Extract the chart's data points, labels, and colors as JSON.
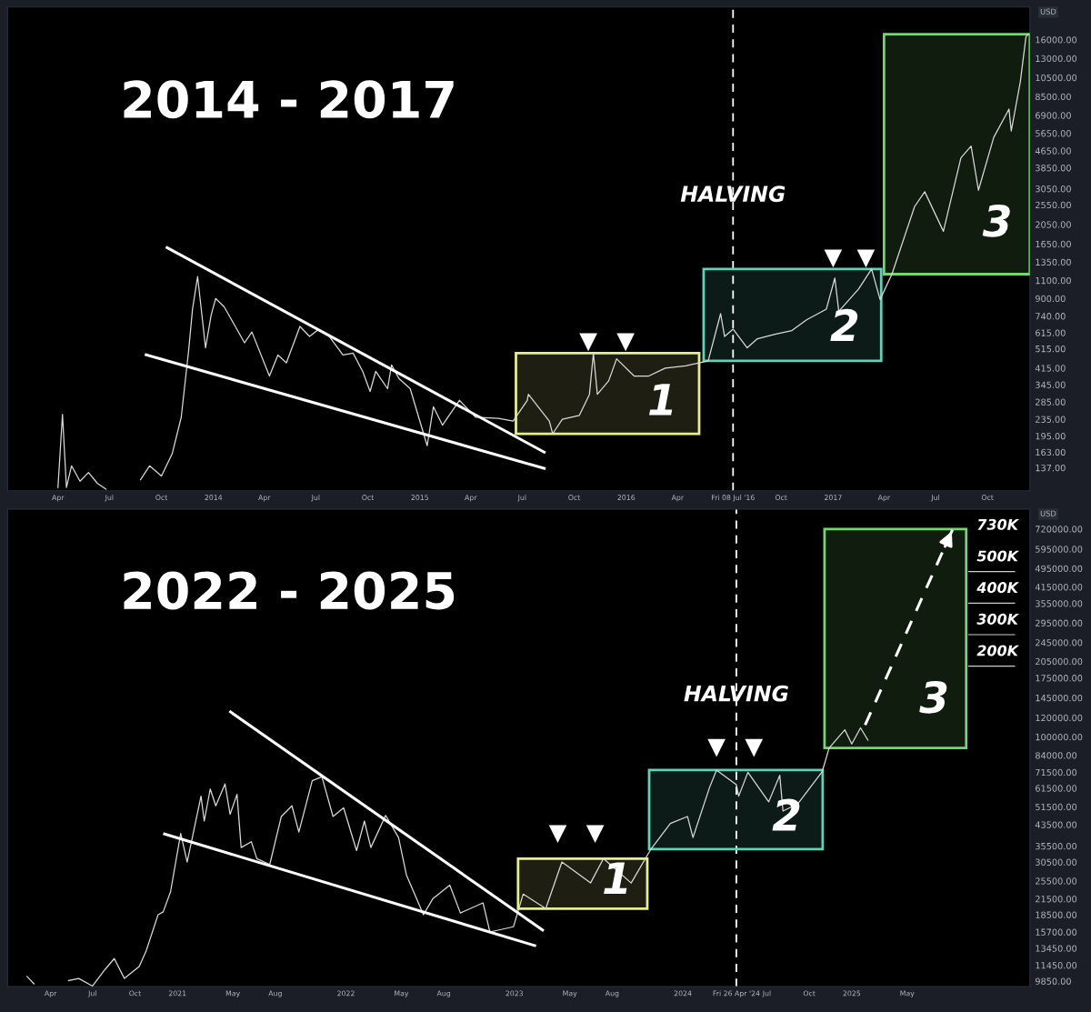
{
  "chart_data": [
    {
      "type": "line",
      "title": "2014 - 2017",
      "ylabel": "USD",
      "log": "y",
      "xlim": [
        "2013-01-02",
        "2017-12-15"
      ],
      "ylim": [
        106,
        23000
      ],
      "xticks": [
        {
          "value": "2013-04-01",
          "label": "Apr"
        },
        {
          "value": "2013-07-01",
          "label": "Jul"
        },
        {
          "value": "2013-10-01",
          "label": "Oct"
        },
        {
          "value": "2014-01-01",
          "label": "2014"
        },
        {
          "value": "2014-04-01",
          "label": "Apr"
        },
        {
          "value": "2014-07-01",
          "label": "Jul"
        },
        {
          "value": "2014-10-01",
          "label": "Oct"
        },
        {
          "value": "2015-01-01",
          "label": "2015"
        },
        {
          "value": "2015-04-01",
          "label": "Apr"
        },
        {
          "value": "2015-07-01",
          "label": "Jul"
        },
        {
          "value": "2015-10-01",
          "label": "Oct"
        },
        {
          "value": "2016-01-01",
          "label": "2016"
        },
        {
          "value": "2016-04-01",
          "label": "Apr"
        },
        {
          "value": "2016-07-08",
          "label": "Fri 08 Jul '16"
        },
        {
          "value": "2016-10-01",
          "label": "Oct"
        },
        {
          "value": "2017-01-01",
          "label": "2017"
        },
        {
          "value": "2017-04-01",
          "label": "Apr"
        },
        {
          "value": "2017-07-01",
          "label": "Jul"
        },
        {
          "value": "2017-10-01",
          "label": "Oct"
        }
      ],
      "yticks": [
        {
          "value": 16000,
          "label": "16000.00"
        },
        {
          "value": 13000,
          "label": "13000.00"
        },
        {
          "value": 10500,
          "label": "10500.00"
        },
        {
          "value": 8500,
          "label": "8500.00"
        },
        {
          "value": 6900,
          "label": "6900.00"
        },
        {
          "value": 5650,
          "label": "5650.00"
        },
        {
          "value": 4650,
          "label": "4650.00"
        },
        {
          "value": 3850,
          "label": "3850.00"
        },
        {
          "value": 3050,
          "label": "3050.00"
        },
        {
          "value": 2550,
          "label": "2550.00"
        },
        {
          "value": 2050,
          "label": "2050.00"
        },
        {
          "value": 1650,
          "label": "1650.00"
        },
        {
          "value": 1350,
          "label": "1350.00"
        },
        {
          "value": 1100,
          "label": "1100.00"
        },
        {
          "value": 900,
          "label": "900.00"
        },
        {
          "value": 740,
          "label": "740.00"
        },
        {
          "value": 615,
          "label": "615.00"
        },
        {
          "value": 515,
          "label": "515.00"
        },
        {
          "value": 415,
          "label": "415.00"
        },
        {
          "value": 345,
          "label": "345.00"
        },
        {
          "value": 285,
          "label": "285.00"
        },
        {
          "value": 235,
          "label": "235.00"
        },
        {
          "value": 195,
          "label": "195.00"
        },
        {
          "value": 163,
          "label": "163.00"
        },
        {
          "value": 137,
          "label": "137.00"
        }
      ],
      "series": [
        {
          "color": "#d9d9d9",
          "x": [
            "2013-04-01",
            "2013-04-09",
            "2013-04-16",
            "2013-04-25",
            "2013-05-10",
            "2013-05-25",
            "2013-06-10",
            "2013-06-25",
            "2013-07-10",
            "2013-08-25",
            "2013-09-10",
            "2013-10-01",
            "2013-10-20",
            "2013-11-05",
            "2013-11-18",
            "2013-11-25",
            "2013-12-04",
            "2013-12-18",
            "2013-12-28",
            "2014-01-05",
            "2014-01-20",
            "2014-02-10",
            "2014-02-25",
            "2014-03-10",
            "2014-04-10",
            "2014-04-25",
            "2014-05-10",
            "2014-06-03",
            "2014-06-20",
            "2014-07-05",
            "2014-07-25",
            "2014-08-18",
            "2014-09-05",
            "2014-09-22",
            "2014-10-05",
            "2014-10-15",
            "2014-11-05",
            "2014-11-12",
            "2014-11-25",
            "2014-12-15",
            "2015-01-14",
            "2015-01-25",
            "2015-02-10",
            "2015-03-12",
            "2015-04-10",
            "2015-05-20",
            "2015-06-15",
            "2015-07-10",
            "2015-07-12",
            "2015-08-18",
            "2015-08-24",
            "2015-09-10",
            "2015-10-10",
            "2015-10-28",
            "2015-11-04",
            "2015-11-11",
            "2015-12-01",
            "2015-12-15",
            "2016-01-15",
            "2016-02-10",
            "2016-03-10",
            "2016-04-15",
            "2016-05-25",
            "2016-06-16",
            "2016-06-23",
            "2016-07-08",
            "2016-08-02",
            "2016-08-20",
            "2016-09-20",
            "2016-10-20",
            "2016-11-15",
            "2016-12-20",
            "2017-01-04",
            "2017-01-11",
            "2017-02-15",
            "2017-03-10",
            "2017-03-25",
            "2017-04-15",
            "2017-05-25",
            "2017-06-12",
            "2017-07-15",
            "2017-08-15",
            "2017-09-02",
            "2017-09-15",
            "2017-10-12",
            "2017-11-08",
            "2017-11-12",
            "2017-11-28",
            "2017-12-08",
            "2017-12-12"
          ],
          "values": [
            110,
            248,
            110,
            140,
            118,
            130,
            115,
            108,
            null,
            120,
            140,
            125,
            160,
            240,
            500,
            800,
            1150,
            520,
            750,
            900,
            820,
            650,
            550,
            620,
            380,
            480,
            440,
            660,
            590,
            635,
            590,
            480,
            490,
            400,
            320,
            400,
            330,
            430,
            370,
            330,
            175,
            270,
            220,
            290,
            240,
            237,
            230,
            290,
            310,
            230,
            200,
            235,
            245,
            310,
            490,
            310,
            360,
            460,
            380,
            380,
            415,
            425,
            450,
            760,
            590,
            640,
            520,
            575,
            605,
            630,
            710,
            800,
            1130,
            780,
            1000,
            1250,
            890,
            1180,
            2500,
            2950,
            1900,
            4300,
            4900,
            3000,
            5400,
            7400,
            5800,
            10000,
            16500,
            17000
          ]
        },
        {
          "type": "line",
          "color": "#ffffff",
          "line_style": "solid",
          "x": [
            "2013-10-11",
            "2015-08-09"
          ],
          "values": [
            1585,
            163
          ]
        },
        {
          "type": "line",
          "color": "#ffffff",
          "line_style": "solid",
          "x": [
            "2013-09-04",
            "2015-08-09"
          ],
          "values": [
            481,
            136
          ]
        },
        {
          "type": "scatter",
          "color": "#ffffff",
          "marker": "triangle",
          "x": [
            "2015-10-26",
            "2015-12-31",
            "2017-01-01",
            "2017-02-28"
          ],
          "values": [
            553,
            553,
            1403,
            1403
          ]
        }
      ],
      "ref_lines": [
        {
          "axis": "x",
          "value": "2016-07-08",
          "label": "HALVING",
          "color": "#ffffff",
          "line_style": "dashed"
        }
      ],
      "bands": [
        {
          "axis": "x",
          "from": "2015-06-20",
          "to": "2016-05-09",
          "label": "1",
          "color": "#e6ef8a"
        },
        {
          "axis": "x",
          "from": "2016-05-17",
          "to": "2017-03-27",
          "label": "2",
          "color": "#5fd3b5"
        },
        {
          "axis": "x",
          "from": "2017-04-01",
          "to": "2017-12-15",
          "label": "3",
          "color": "#74d66e"
        }
      ]
    },
    {
      "type": "line",
      "title": "2022 - 2025",
      "ylabel": "USD",
      "log": "y",
      "xlim": [
        "2019-12-30",
        "2026-01-22"
      ],
      "ylim": [
        9340,
        870000
      ],
      "xticks": [
        {
          "value": "2020-04-01",
          "label": "Apr"
        },
        {
          "value": "2020-07-01",
          "label": "Jul"
        },
        {
          "value": "2020-10-01",
          "label": "Oct"
        },
        {
          "value": "2021-01-01",
          "label": "2021"
        },
        {
          "value": "2021-05-01",
          "label": "May"
        },
        {
          "value": "2021-08-01",
          "label": "Aug"
        },
        {
          "value": "2022-01-01",
          "label": "2022"
        },
        {
          "value": "2022-05-01",
          "label": "May"
        },
        {
          "value": "2022-08-01",
          "label": "Aug"
        },
        {
          "value": "2023-01-01",
          "label": "2023"
        },
        {
          "value": "2023-05-01",
          "label": "May"
        },
        {
          "value": "2023-08-01",
          "label": "Aug"
        },
        {
          "value": "2024-01-01",
          "label": "2024"
        },
        {
          "value": "2024-04-26",
          "label": "Fri 26 Apr '24"
        },
        {
          "value": "2024-07-01",
          "label": "Jul"
        },
        {
          "value": "2024-10-01",
          "label": "Oct"
        },
        {
          "value": "2025-01-01",
          "label": "2025"
        },
        {
          "value": "2025-05-01",
          "label": "May"
        }
      ],
      "yticks": [
        {
          "value": 720000,
          "label": "720000.00"
        },
        {
          "value": 595000,
          "label": "595000.00"
        },
        {
          "value": 495000,
          "label": "495000.00"
        },
        {
          "value": 415000,
          "label": "415000.00"
        },
        {
          "value": 355000,
          "label": "355000.00"
        },
        {
          "value": 295000,
          "label": "295000.00"
        },
        {
          "value": 245000,
          "label": "245000.00"
        },
        {
          "value": 205000,
          "label": "205000.00"
        },
        {
          "value": 175000,
          "label": "175000.00"
        },
        {
          "value": 145000,
          "label": "145000.00"
        },
        {
          "value": 120000,
          "label": "120000.00"
        },
        {
          "value": 100000,
          "label": "100000.00"
        },
        {
          "value": 84000,
          "label": "84000.00"
        },
        {
          "value": 71500,
          "label": "71500.00"
        },
        {
          "value": 61500,
          "label": "61500.00"
        },
        {
          "value": 51500,
          "label": "51500.00"
        },
        {
          "value": 43500,
          "label": "43500.00"
        },
        {
          "value": 35500,
          "label": "35500.00"
        },
        {
          "value": 30500,
          "label": "30500.00"
        },
        {
          "value": 25500,
          "label": "25500.00"
        },
        {
          "value": 21500,
          "label": "21500.00"
        },
        {
          "value": 18500,
          "label": "18500.00"
        },
        {
          "value": 15700,
          "label": "15700.00"
        },
        {
          "value": 13450,
          "label": "13450.00"
        },
        {
          "value": 11450,
          "label": "11450.00"
        },
        {
          "value": 9850,
          "label": "9850.00"
        }
      ],
      "series": [
        {
          "color": "#d9d9d9",
          "x": [
            "2020-02-10",
            "2020-02-25",
            "2020-03-15",
            "2020-05-10",
            "2020-06-01",
            "2020-07-01",
            "2020-07-28",
            "2020-08-17",
            "2020-09-08",
            "2020-10-10",
            "2020-10-25",
            "2020-11-20",
            "2020-12-01",
            "2020-12-17",
            "2021-01-08",
            "2021-01-22",
            "2021-02-21",
            "2021-02-28",
            "2021-03-13",
            "2021-03-25",
            "2021-04-14",
            "2021-04-25",
            "2021-05-10",
            "2021-05-19",
            "2021-06-10",
            "2021-06-22",
            "2021-07-20",
            "2021-08-14",
            "2021-09-06",
            "2021-09-21",
            "2021-10-20",
            "2021-11-10",
            "2021-12-04",
            "2021-12-27",
            "2022-01-24",
            "2022-02-10",
            "2022-02-24",
            "2022-03-28",
            "2022-04-25",
            "2022-05-12",
            "2022-06-18",
            "2022-07-08",
            "2022-08-14",
            "2022-09-06",
            "2022-10-25",
            "2022-11-09",
            "2022-12-30",
            "2023-01-20",
            "2023-03-10",
            "2023-04-14",
            "2023-06-15",
            "2023-07-13",
            "2023-09-11",
            "2023-10-24",
            "2023-12-05",
            "2024-01-11",
            "2024-01-23",
            "2024-02-28",
            "2024-03-14",
            "2024-04-26",
            "2024-05-01",
            "2024-05-21",
            "2024-07-05",
            "2024-07-29",
            "2024-08-05",
            "2024-09-06",
            "2024-10-29",
            "2024-11-13",
            "2024-12-17",
            "2025-01-01",
            "2025-01-20",
            "2025-02-05"
          ],
          "values": [
            10300,
            9600,
            null,
            9900,
            10100,
            9400,
            11000,
            12200,
            10100,
            11300,
            13100,
            18500,
            19000,
            23000,
            40000,
            30500,
            57000,
            45000,
            61000,
            52000,
            64000,
            48000,
            58000,
            35000,
            37000,
            31500,
            29800,
            47000,
            52000,
            40500,
            66000,
            68500,
            47000,
            51000,
            34000,
            45000,
            35000,
            47500,
            38500,
            27000,
            18500,
            21500,
            24500,
            18800,
            20700,
            15700,
            16500,
            22500,
            19600,
            30500,
            25000,
            31500,
            25000,
            34500,
            44000,
            47000,
            38500,
            62000,
            73000,
            63500,
            57000,
            71500,
            54000,
            69500,
            49500,
            53000,
            72000,
            90000,
            107000,
            93500,
            109000,
            97000
          ]
        },
        {
          "type": "line",
          "color": "#ffffff",
          "line_style": "solid",
          "x": [
            "2021-04-26",
            "2023-03-03"
          ],
          "values": [
            126800,
            16000
          ]
        },
        {
          "type": "line",
          "color": "#ffffff",
          "line_style": "solid",
          "x": [
            "2020-12-04",
            "2023-02-14"
          ],
          "values": [
            39800,
            13800
          ]
        },
        {
          "type": "scatter",
          "color": "#ffffff",
          "marker": "triangle",
          "x": [
            "2023-04-05",
            "2023-06-25",
            "2024-03-14",
            "2024-06-03"
          ],
          "values": [
            39800,
            39800,
            90000,
            90000
          ]
        },
        {
          "type": "line",
          "color": "#ffffff",
          "line_style": "dashed",
          "x": [
            "2025-01-30",
            "2025-08-08"
          ],
          "values": [
            112000,
            720000
          ]
        }
      ],
      "ref_lines": [
        {
          "axis": "x",
          "value": "2024-04-26",
          "label": "HALVING",
          "color": "#ffffff",
          "line_style": "dashed"
        }
      ],
      "bands": [
        {
          "axis": "x",
          "from": "2023-01-09",
          "to": "2023-10-16",
          "label": "1",
          "color": "#e6ef8a"
        },
        {
          "axis": "x",
          "from": "2023-10-20",
          "to": "2024-10-30",
          "label": "2",
          "color": "#5fd3b5"
        },
        {
          "axis": "x",
          "from": "2024-11-03",
          "to": "2025-09-06",
          "label": "3",
          "color": "#74d66e"
        }
      ],
      "annotations": [
        "730K",
        "500K",
        "400K",
        "300K",
        "200K"
      ]
    }
  ]
}
